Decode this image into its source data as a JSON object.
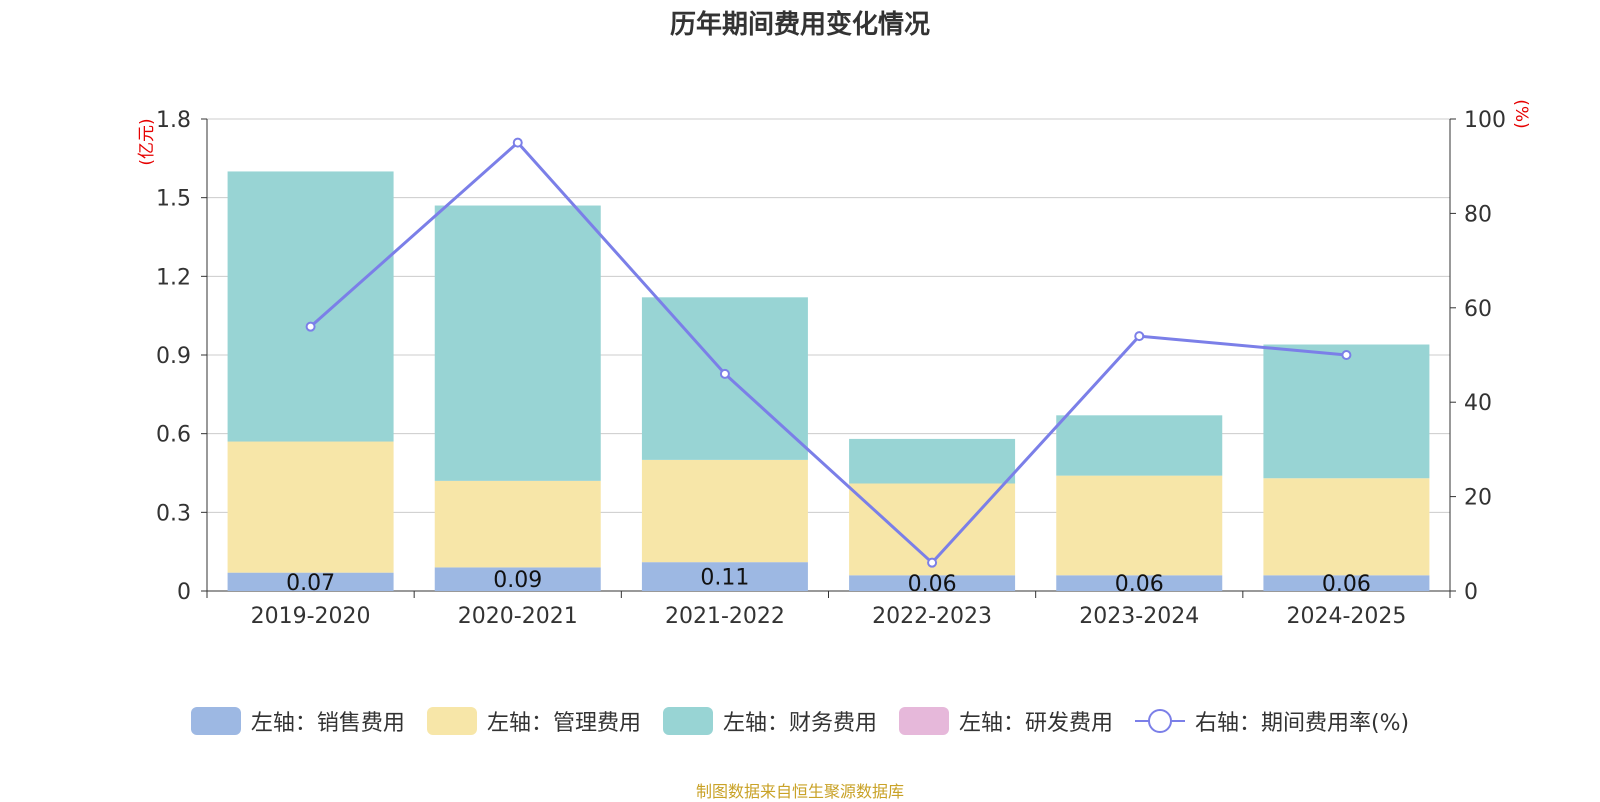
{
  "chart_data": {
    "type": "bar",
    "title": "历年期间费用变化情况",
    "categories": [
      "2019-2020",
      "2020-2021",
      "2021-2022",
      "2022-2023",
      "2023-2024",
      "2024-2025"
    ],
    "series": [
      {
        "name": "左轴：销售费用",
        "axis": "left",
        "type": "bar",
        "stack": "total",
        "color": "#9db8e3",
        "values": [
          0.07,
          0.09,
          0.11,
          0.06,
          0.06,
          0.06
        ]
      },
      {
        "name": "左轴：管理费用",
        "axis": "left",
        "type": "bar",
        "stack": "total",
        "color": "#f7e6a8",
        "values": [
          0.5,
          0.33,
          0.39,
          0.35,
          0.38,
          0.37
        ]
      },
      {
        "name": "左轴：财务费用",
        "axis": "left",
        "type": "bar",
        "stack": "total",
        "color": "#98d4d4",
        "values": [
          1.03,
          1.05,
          0.62,
          0.17,
          0.23,
          0.51
        ]
      },
      {
        "name": "左轴：研发费用",
        "axis": "left",
        "type": "bar",
        "stack": "total",
        "color": "#e6b8da",
        "values": [
          0,
          0,
          0,
          0,
          0,
          0
        ]
      },
      {
        "name": "右轴：期间费用率(%)",
        "axis": "right",
        "type": "line",
        "color": "#7b7fe8",
        "values": [
          56,
          95,
          46,
          6,
          54,
          50
        ]
      }
    ],
    "bar_labels": [
      "0.07",
      "0.09",
      "0.11",
      "0.06",
      "0.06",
      "0.06"
    ],
    "left_axis": {
      "unit": "(亿元)",
      "ylim": [
        0,
        1.8
      ],
      "ticks": [
        "0",
        "0.3",
        "0.6",
        "0.9",
        "1.2",
        "1.5",
        "1.8"
      ]
    },
    "right_axis": {
      "unit": "(%)",
      "ylim": [
        0,
        100
      ],
      "ticks": [
        "0",
        "20",
        "40",
        "60",
        "80",
        "100"
      ]
    },
    "grid": true,
    "legend_position": "bottom"
  },
  "source_note": "制图数据来自恒生聚源数据库"
}
